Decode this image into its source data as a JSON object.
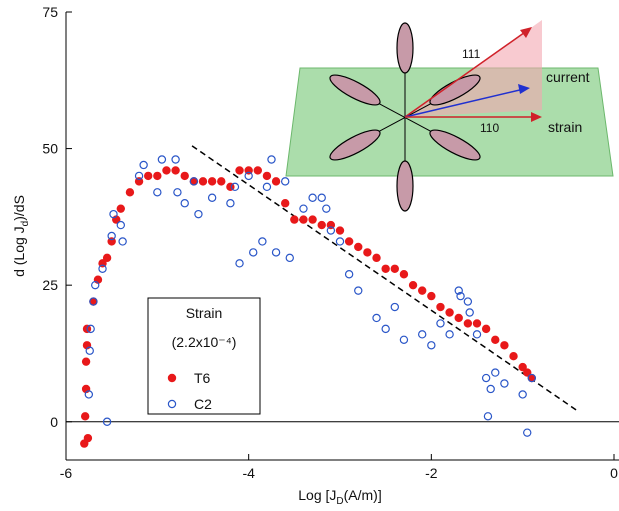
{
  "chart_data": {
    "type": "scatter",
    "xlabel": {
      "text": "Log [J",
      "sub": "D",
      "tail": "(A/m)]"
    },
    "ylabel": {
      "text": "d (Log J",
      "sub": "d",
      "tail": ")/dS"
    },
    "xlim": [
      -6,
      0
    ],
    "xticks": [
      -6,
      -4,
      -2,
      0
    ],
    "ylim": [
      -7,
      75
    ],
    "yticks": [
      0,
      25,
      50,
      75
    ],
    "legend": {
      "title": "Strain",
      "subtitle": "(2.2x10⁻⁴)",
      "corner": "lower-left"
    },
    "series": [
      {
        "name": "T6",
        "color": "#e8191a",
        "marker": "filled",
        "x": [
          -5.8,
          -5.79,
          -5.78,
          -5.78,
          -5.77,
          -5.77,
          -5.76,
          -5.7,
          -5.65,
          -5.6,
          -5.55,
          -5.5,
          -5.45,
          -5.4,
          -5.3,
          -5.2,
          -5.1,
          -5.0,
          -4.9,
          -4.8,
          -4.7,
          -4.6,
          -4.5,
          -4.4,
          -4.3,
          -4.2,
          -4.1,
          -4.0,
          -3.9,
          -3.8,
          -3.7,
          -3.6,
          -3.5,
          -3.4,
          -3.3,
          -3.2,
          -3.1,
          -3.0,
          -2.9,
          -2.8,
          -2.7,
          -2.6,
          -2.5,
          -2.4,
          -2.3,
          -2.2,
          -2.1,
          -2.0,
          -1.9,
          -1.8,
          -1.7,
          -1.6,
          -1.5,
          -1.4,
          -1.3,
          -1.2,
          -1.1,
          -1.0,
          -0.95,
          -0.9
        ],
        "values": [
          -4,
          1,
          6,
          11,
          14,
          17,
          -3,
          22,
          26,
          29,
          30,
          33,
          37,
          39,
          42,
          44,
          45,
          45,
          46,
          46,
          45,
          44,
          44,
          44,
          44,
          43,
          46,
          46,
          46,
          45,
          44,
          40,
          37,
          37,
          37,
          36,
          36,
          35,
          33,
          32,
          31,
          30,
          28,
          28,
          27,
          25,
          24,
          23,
          21,
          20,
          19,
          18,
          18,
          17,
          15,
          14,
          12,
          10,
          9,
          8
        ]
      },
      {
        "name": "C2",
        "color": "#2a56c8",
        "marker": "open",
        "x": [
          -5.75,
          -5.74,
          -5.73,
          -5.7,
          -5.68,
          -5.6,
          -5.55,
          -5.5,
          -5.48,
          -5.4,
          -5.38,
          -5.2,
          -5.15,
          -5.0,
          -4.95,
          -4.8,
          -4.78,
          -4.7,
          -4.6,
          -4.55,
          -4.4,
          -4.2,
          -4.15,
          -4.0,
          -3.8,
          -3.75,
          -3.6,
          -4.1,
          -3.95,
          -3.85,
          -3.7,
          -3.55,
          -3.4,
          -3.3,
          -3.2,
          -3.15,
          -3.1,
          -3.0,
          -2.9,
          -2.8,
          -2.6,
          -2.5,
          -2.4,
          -2.3,
          -2.1,
          -2.0,
          -1.9,
          -1.8,
          -1.7,
          -1.68,
          -1.6,
          -1.58,
          -1.5,
          -1.4,
          -1.38,
          -1.3,
          -1.2,
          -1.0,
          -0.95,
          -0.9,
          -1.35
        ],
        "values": [
          5,
          13,
          17,
          22,
          25,
          28,
          0,
          34,
          38,
          36,
          33,
          45,
          47,
          42,
          48,
          48,
          42,
          40,
          44,
          38,
          41,
          40,
          43,
          45,
          43,
          48,
          44,
          29,
          31,
          33,
          31,
          30,
          39,
          41,
          41,
          39,
          35,
          33,
          27,
          24,
          19,
          17,
          21,
          15,
          16,
          14,
          18,
          16,
          24,
          23,
          22,
          20,
          16,
          8,
          1,
          9,
          7,
          5,
          -2,
          8,
          6
        ]
      }
    ],
    "trend_line": {
      "x": [
        -4.62,
        -0.4
      ],
      "y": [
        50.5,
        2
      ]
    },
    "inset": {
      "labels": [
        "111",
        "current",
        "110",
        "strain"
      ]
    }
  }
}
